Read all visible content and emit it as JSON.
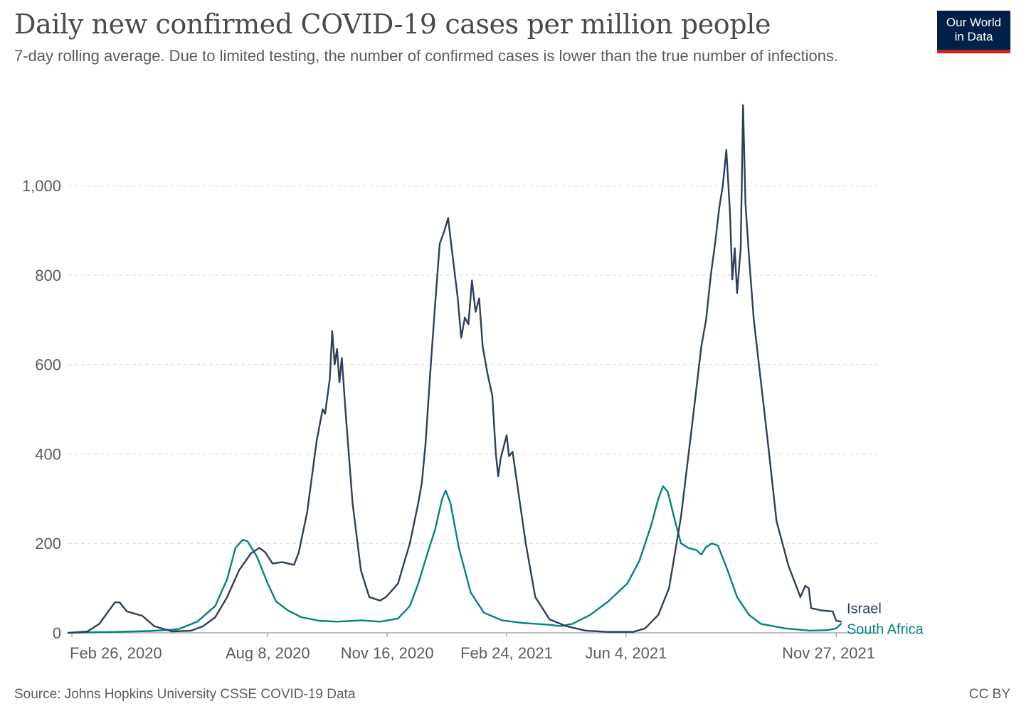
{
  "header": {
    "title": "Daily new confirmed COVID-19 cases per million people",
    "subtitle": "7-day rolling average. Due to limited testing, the number of confirmed cases is lower than the true number of infections.",
    "logo_line1": "Our World",
    "logo_line2": "in Data"
  },
  "footer": {
    "source": "Source: Johns Hopkins University CSSE COVID-19 Data",
    "license": "CC BY"
  },
  "colors": {
    "israel": "#2e3f5c",
    "south_africa": "#00847e",
    "grid": "#dddddd",
    "text": "#5b5b5b",
    "logo_bg": "#002147",
    "logo_accent": "#ce261e"
  },
  "chart_data": {
    "type": "line",
    "title": "Daily new confirmed COVID-19 cases per million people",
    "xlabel": "",
    "ylabel": "",
    "ylim": [
      0,
      1180
    ],
    "xlim": [
      "2020-02-23",
      "2022-01-01"
    ],
    "grid": "horizontal dashed",
    "legend": "line-end labels (right)",
    "x_ticks": [
      {
        "date": "2020-02-26",
        "label": "Feb 26, 2020"
      },
      {
        "date": "2020-08-08",
        "label": "Aug 8, 2020"
      },
      {
        "date": "2020-11-16",
        "label": "Nov 16, 2020"
      },
      {
        "date": "2021-02-24",
        "label": "Feb 24, 2021"
      },
      {
        "date": "2021-06-04",
        "label": "Jun 4, 2021"
      },
      {
        "date": "2021-11-27",
        "label": "Nov 27, 2021"
      }
    ],
    "y_ticks": [
      {
        "value": 0,
        "label": "0"
      },
      {
        "value": 200,
        "label": "200"
      },
      {
        "value": 400,
        "label": "400"
      },
      {
        "value": 600,
        "label": "600"
      },
      {
        "value": 800,
        "label": "800"
      },
      {
        "value": 1000,
        "label": "1,000"
      }
    ],
    "series": [
      {
        "name": "Israel",
        "color": "#2e3f5c",
        "points": [
          [
            "2020-02-23",
            0
          ],
          [
            "2020-03-10",
            3
          ],
          [
            "2020-03-20",
            20
          ],
          [
            "2020-03-28",
            50
          ],
          [
            "2020-04-02",
            68
          ],
          [
            "2020-04-06",
            68
          ],
          [
            "2020-04-12",
            48
          ],
          [
            "2020-04-25",
            38
          ],
          [
            "2020-05-05",
            15
          ],
          [
            "2020-05-20",
            3
          ],
          [
            "2020-06-05",
            5
          ],
          [
            "2020-06-15",
            15
          ],
          [
            "2020-06-25",
            35
          ],
          [
            "2020-07-05",
            80
          ],
          [
            "2020-07-15",
            140
          ],
          [
            "2020-07-25",
            178
          ],
          [
            "2020-08-01",
            190
          ],
          [
            "2020-08-06",
            180
          ],
          [
            "2020-08-12",
            155
          ],
          [
            "2020-08-20",
            158
          ],
          [
            "2020-08-30",
            152
          ],
          [
            "2020-09-03",
            180
          ],
          [
            "2020-09-10",
            270
          ],
          [
            "2020-09-18",
            430
          ],
          [
            "2020-09-23",
            500
          ],
          [
            "2020-09-25",
            490
          ],
          [
            "2020-09-29",
            570
          ],
          [
            "2020-10-01",
            675
          ],
          [
            "2020-10-03",
            600
          ],
          [
            "2020-10-05",
            635
          ],
          [
            "2020-10-07",
            560
          ],
          [
            "2020-10-09",
            615
          ],
          [
            "2020-10-12",
            500
          ],
          [
            "2020-10-18",
            290
          ],
          [
            "2020-10-25",
            140
          ],
          [
            "2020-11-01",
            80
          ],
          [
            "2020-11-10",
            72
          ],
          [
            "2020-11-15",
            80
          ],
          [
            "2020-11-25",
            110
          ],
          [
            "2020-12-05",
            200
          ],
          [
            "2020-12-12",
            290
          ],
          [
            "2020-12-15",
            335
          ],
          [
            "2020-12-18",
            420
          ],
          [
            "2020-12-22",
            580
          ],
          [
            "2020-12-26",
            730
          ],
          [
            "2020-12-30",
            870
          ],
          [
            "2021-01-03",
            900
          ],
          [
            "2021-01-06",
            928
          ],
          [
            "2021-01-09",
            860
          ],
          [
            "2021-01-14",
            750
          ],
          [
            "2021-01-17",
            660
          ],
          [
            "2021-01-20",
            705
          ],
          [
            "2021-01-23",
            690
          ],
          [
            "2021-01-26",
            788
          ],
          [
            "2021-01-29",
            718
          ],
          [
            "2021-02-01",
            748
          ],
          [
            "2021-02-04",
            640
          ],
          [
            "2021-02-08",
            580
          ],
          [
            "2021-02-12",
            530
          ],
          [
            "2021-02-15",
            400
          ],
          [
            "2021-02-17",
            350
          ],
          [
            "2021-02-19",
            390
          ],
          [
            "2021-02-24",
            442
          ],
          [
            "2021-02-26",
            395
          ],
          [
            "2021-03-01",
            405
          ],
          [
            "2021-03-05",
            330
          ],
          [
            "2021-03-12",
            200
          ],
          [
            "2021-03-20",
            80
          ],
          [
            "2021-04-01",
            30
          ],
          [
            "2021-04-15",
            15
          ],
          [
            "2021-05-01",
            5
          ],
          [
            "2021-05-20",
            2
          ],
          [
            "2021-06-10",
            2
          ],
          [
            "2021-06-20",
            10
          ],
          [
            "2021-07-01",
            40
          ],
          [
            "2021-07-10",
            100
          ],
          [
            "2021-07-20",
            260
          ],
          [
            "2021-07-30",
            480
          ],
          [
            "2021-08-06",
            640
          ],
          [
            "2021-08-10",
            700
          ],
          [
            "2021-08-14",
            800
          ],
          [
            "2021-08-18",
            880
          ],
          [
            "2021-08-21",
            950
          ],
          [
            "2021-08-24",
            1000
          ],
          [
            "2021-08-27",
            1080
          ],
          [
            "2021-08-30",
            940
          ],
          [
            "2021-09-01",
            790
          ],
          [
            "2021-09-03",
            860
          ],
          [
            "2021-09-05",
            760
          ],
          [
            "2021-09-08",
            860
          ],
          [
            "2021-09-10",
            1180
          ],
          [
            "2021-09-12",
            960
          ],
          [
            "2021-09-15",
            840
          ],
          [
            "2021-09-19",
            700
          ],
          [
            "2021-09-25",
            560
          ],
          [
            "2021-10-01",
            420
          ],
          [
            "2021-10-08",
            250
          ],
          [
            "2021-10-18",
            150
          ],
          [
            "2021-10-28",
            80
          ],
          [
            "2021-11-01",
            105
          ],
          [
            "2021-11-04",
            100
          ],
          [
            "2021-11-06",
            55
          ],
          [
            "2021-11-15",
            50
          ],
          [
            "2021-11-24",
            48
          ],
          [
            "2021-11-27",
            27
          ],
          [
            "2021-12-01",
            25
          ]
        ]
      },
      {
        "name": "South Africa",
        "color": "#00847e",
        "points": [
          [
            "2020-02-23",
            0
          ],
          [
            "2020-04-01",
            2
          ],
          [
            "2020-05-01",
            4
          ],
          [
            "2020-05-25",
            8
          ],
          [
            "2020-06-10",
            25
          ],
          [
            "2020-06-25",
            60
          ],
          [
            "2020-07-05",
            120
          ],
          [
            "2020-07-12",
            190
          ],
          [
            "2020-07-18",
            208
          ],
          [
            "2020-07-22",
            205
          ],
          [
            "2020-07-30",
            170
          ],
          [
            "2020-08-08",
            110
          ],
          [
            "2020-08-15",
            70
          ],
          [
            "2020-08-25",
            50
          ],
          [
            "2020-09-05",
            35
          ],
          [
            "2020-09-20",
            27
          ],
          [
            "2020-10-05",
            25
          ],
          [
            "2020-10-25",
            28
          ],
          [
            "2020-11-10",
            25
          ],
          [
            "2020-11-25",
            32
          ],
          [
            "2020-12-05",
            60
          ],
          [
            "2020-12-12",
            110
          ],
          [
            "2020-12-20",
            180
          ],
          [
            "2020-12-26",
            230
          ],
          [
            "2021-01-01",
            300
          ],
          [
            "2021-01-04",
            318
          ],
          [
            "2021-01-08",
            290
          ],
          [
            "2021-01-15",
            190
          ],
          [
            "2021-01-25",
            90
          ],
          [
            "2021-02-05",
            45
          ],
          [
            "2021-02-20",
            28
          ],
          [
            "2021-03-10",
            22
          ],
          [
            "2021-04-01",
            18
          ],
          [
            "2021-04-10",
            15
          ],
          [
            "2021-04-20",
            20
          ],
          [
            "2021-05-05",
            40
          ],
          [
            "2021-05-20",
            70
          ],
          [
            "2021-06-05",
            110
          ],
          [
            "2021-06-15",
            160
          ],
          [
            "2021-06-25",
            240
          ],
          [
            "2021-07-01",
            300
          ],
          [
            "2021-07-05",
            328
          ],
          [
            "2021-07-09",
            315
          ],
          [
            "2021-07-15",
            250
          ],
          [
            "2021-07-20",
            200
          ],
          [
            "2021-07-26",
            190
          ],
          [
            "2021-08-02",
            185
          ],
          [
            "2021-08-06",
            175
          ],
          [
            "2021-08-10",
            192
          ],
          [
            "2021-08-15",
            200
          ],
          [
            "2021-08-20",
            195
          ],
          [
            "2021-08-28",
            140
          ],
          [
            "2021-09-05",
            80
          ],
          [
            "2021-09-15",
            40
          ],
          [
            "2021-09-25",
            20
          ],
          [
            "2021-10-15",
            10
          ],
          [
            "2021-11-05",
            5
          ],
          [
            "2021-11-20",
            6
          ],
          [
            "2021-11-27",
            10
          ],
          [
            "2021-12-01",
            20
          ]
        ]
      }
    ]
  }
}
